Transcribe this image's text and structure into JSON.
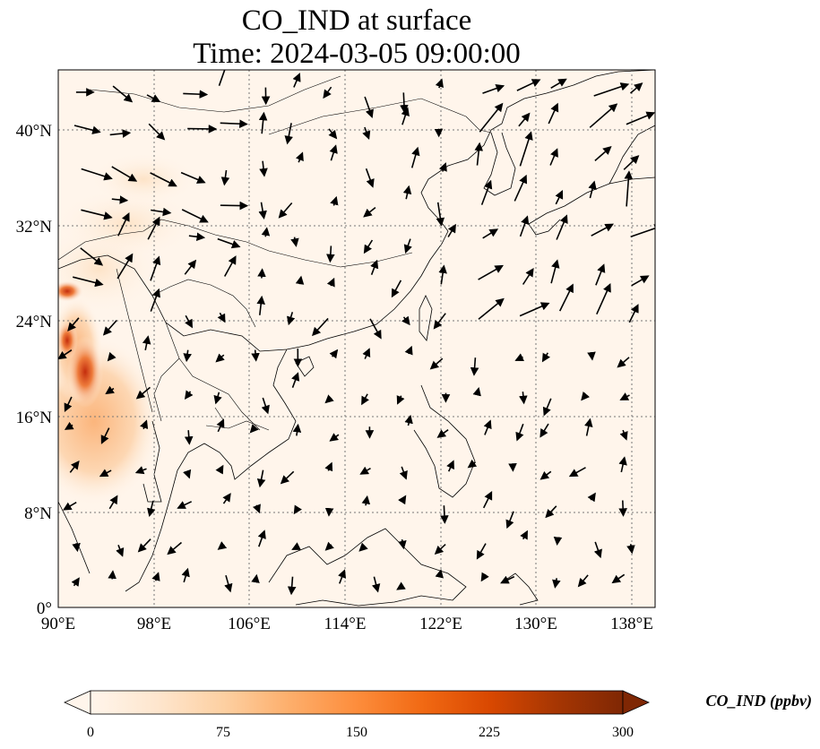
{
  "title_line1": "CO_IND at surface",
  "title_line2": "Time: 2024-03-05 09:00:00",
  "map": {
    "lon_range": [
      90,
      140
    ],
    "lat_range": [
      0,
      45
    ],
    "x_ticks": [
      "90°E",
      "98°E",
      "106°E",
      "114°E",
      "122°E",
      "130°E",
      "138°E"
    ],
    "y_ticks": [
      "0°",
      "8°N",
      "16°N",
      "24°N",
      "32°N",
      "40°N"
    ],
    "gridlines": true,
    "features": [
      "coastlines",
      "country-borders",
      "wind-vectors"
    ]
  },
  "colorbar": {
    "label": "CO_IND (ppbv)",
    "ticks": [
      "0",
      "75",
      "150",
      "225",
      "300"
    ],
    "range": [
      0,
      300
    ],
    "colormap": [
      "#fff5eb",
      "#fee6ce",
      "#fdd0a2",
      "#fdae6b",
      "#fd8d3c",
      "#f16913",
      "#d94801",
      "#a63603",
      "#7f2704"
    ],
    "extend": "both"
  },
  "colors": {
    "ocean": "#fff5eb",
    "land_base": "#fff5eb",
    "grid": "#777777",
    "vector": "#000000"
  }
}
